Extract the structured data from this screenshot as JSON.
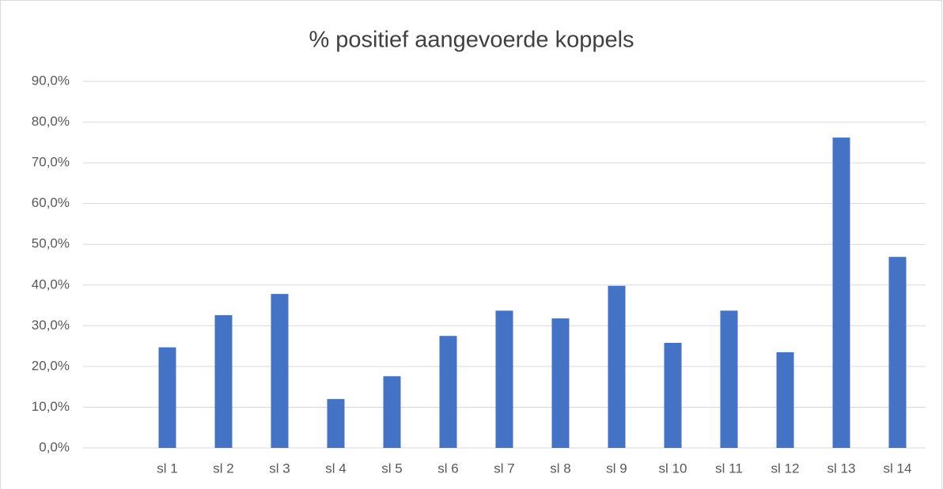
{
  "chart_data": {
    "type": "bar",
    "title": "% positief aangevoerde koppels",
    "categories": [
      null,
      "sl 1",
      "sl 2",
      "sl 3",
      "sl 4",
      "sl 5",
      "sl 6",
      "sl 7",
      "sl 8",
      "sl 9",
      "sl 10",
      "sl 11",
      "sl 12",
      "sl 13",
      "sl 14"
    ],
    "values": [
      null,
      24.7,
      32.6,
      37.8,
      12.0,
      17.6,
      27.5,
      33.7,
      31.8,
      39.8,
      25.8,
      33.7,
      23.5,
      76.2,
      46.9
    ],
    "color": "#4472c4",
    "ylim": [
      0,
      90
    ],
    "yticks": [
      {
        "value": 0,
        "label": "0,0%"
      },
      {
        "value": 10,
        "label": "10,0%"
      },
      {
        "value": 20,
        "label": "20,0%"
      },
      {
        "value": 30,
        "label": "30,0%"
      },
      {
        "value": 40,
        "label": "40,0%"
      },
      {
        "value": 50,
        "label": "50,0%"
      },
      {
        "value": 60,
        "label": "60,0%"
      },
      {
        "value": 70,
        "label": "70,0%"
      },
      {
        "value": 80,
        "label": "80,0%"
      },
      {
        "value": 90,
        "label": "90,0%"
      }
    ],
    "grid": true
  }
}
